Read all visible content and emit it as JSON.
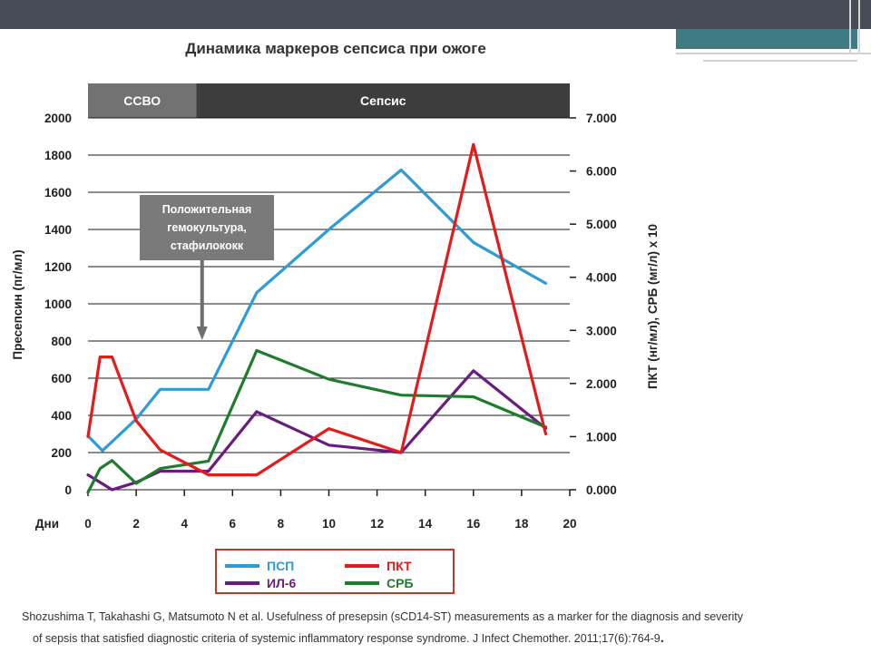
{
  "title": "Динамика маркеров сепсиса при ожоге",
  "citation": {
    "line1": "Shozushima T, Takahashi G, Matsumoto N et al. Usefulness of presepsin (sCD14-ST) measurements as a marker for the diagnosis and severity",
    "line2": "of sepsis that satisfied diagnostic criteria of systemic inflammatory response syndrome. J Infect Chemother. 2011;17(6):764-9",
    "end": "."
  },
  "colors": {
    "topbar": "#474b55",
    "teal": "#3f7b83",
    "ssvo_band": "#727272",
    "sepsis_band": "#3d3d3d",
    "annotation_box": "#7a7a7a",
    "legend_border": "#c0392b"
  },
  "chart_data": {
    "type": "line",
    "xlabel": "Дни",
    "ylabel_left": "Пресепсин (пг/мл)",
    "ylabel_right": "ПКТ (нг/мл), СРБ (мг/л) x 10",
    "xlim": [
      0,
      20
    ],
    "ylim_left": [
      0,
      2000
    ],
    "ylim_right": [
      0,
      7
    ],
    "x_ticks": [
      "0",
      "2",
      "4",
      "6",
      "8",
      "10",
      "12",
      "14",
      "16",
      "18",
      "20"
    ],
    "y_left_ticks": [
      "0",
      "200",
      "400",
      "600",
      "800",
      "1000",
      "1200",
      "1400",
      "1600",
      "1800",
      "2000"
    ],
    "y_right_ticks": [
      "0.000",
      "1.000",
      "2.000",
      "3.000",
      "4.000",
      "5.000",
      "6.000",
      "7.000"
    ],
    "grid": true,
    "legend_position": "bottom",
    "phases": [
      {
        "label": "ССВО",
        "start": 0,
        "end": 4.5
      },
      {
        "label": "Сепсис",
        "start": 4.5,
        "end": 20
      }
    ],
    "annotation": {
      "lines": [
        "Положительная",
        "гемокультура,",
        "стафилококк"
      ],
      "x": 5
    },
    "series": [
      {
        "name": "ПСП",
        "axis": "left",
        "color": "#2e9bd6",
        "points": [
          [
            0,
            290
          ],
          [
            0.6,
            210
          ],
          [
            2,
            380
          ],
          [
            3,
            540
          ],
          [
            5,
            540
          ],
          [
            7,
            1060
          ],
          [
            10,
            1400
          ],
          [
            13,
            1720
          ],
          [
            16,
            1330
          ],
          [
            19,
            1110
          ]
        ]
      },
      {
        "name": "ПКТ",
        "axis": "right",
        "color": "#e31b1b",
        "points": [
          [
            0,
            1.0
          ],
          [
            0.5,
            2.5
          ],
          [
            1,
            2.5
          ],
          [
            2,
            1.3
          ],
          [
            3,
            0.75
          ],
          [
            5,
            0.28
          ],
          [
            7,
            0.28
          ],
          [
            10,
            1.15
          ],
          [
            13,
            0.7
          ],
          [
            16,
            6.5
          ],
          [
            19,
            1.05
          ]
        ]
      },
      {
        "name": "ИЛ-6",
        "axis": "left",
        "color": "#6a1b7f",
        "points": [
          [
            0,
            80
          ],
          [
            1,
            0
          ],
          [
            2,
            40
          ],
          [
            3,
            100
          ],
          [
            5,
            100
          ],
          [
            7,
            420
          ],
          [
            10,
            240
          ],
          [
            13,
            200
          ],
          [
            16,
            640
          ],
          [
            19,
            330
          ]
        ]
      },
      {
        "name": "СРБ",
        "axis": "right",
        "color": "#1e7d2a",
        "points": [
          [
            0,
            -0.05
          ],
          [
            0.5,
            0.4
          ],
          [
            1,
            0.55
          ],
          [
            2,
            0.12
          ],
          [
            3,
            0.4
          ],
          [
            5,
            0.54
          ],
          [
            7,
            2.62
          ],
          [
            10,
            2.08
          ],
          [
            13,
            1.78
          ],
          [
            16,
            1.75
          ],
          [
            19,
            1.18
          ]
        ]
      }
    ]
  }
}
